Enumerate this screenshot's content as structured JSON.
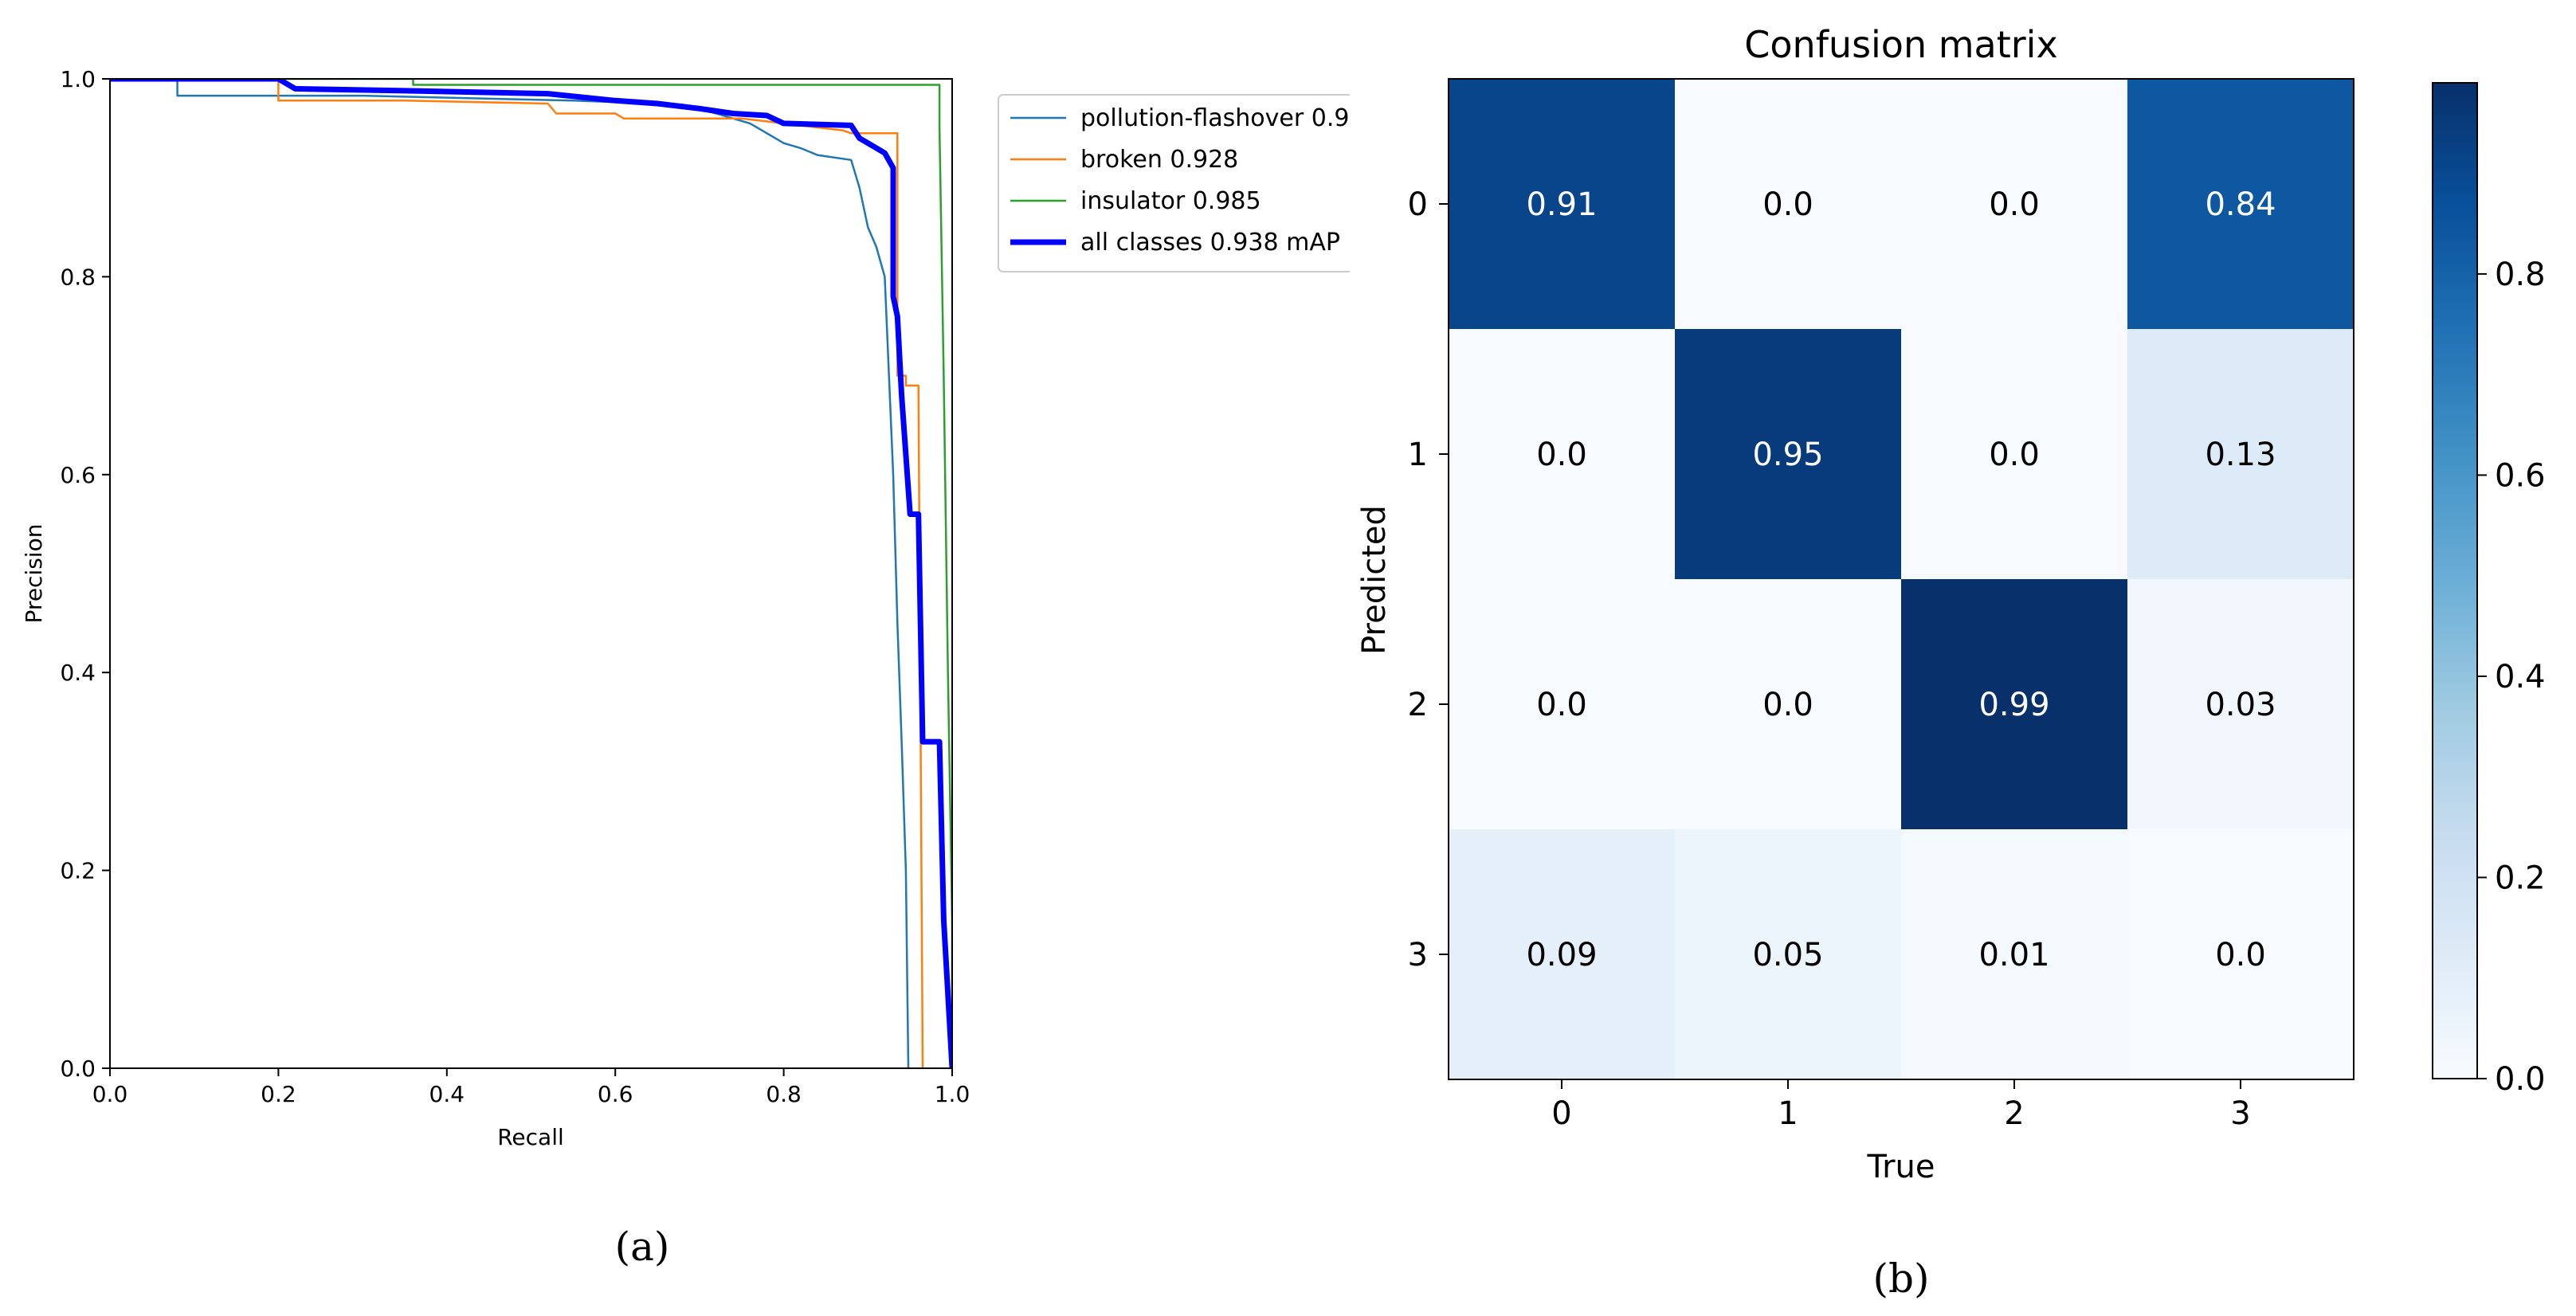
{
  "chart_data": [
    {
      "type": "line",
      "panel_label": "(a)",
      "xlabel": "Recall",
      "ylabel": "Precision",
      "xlim": [
        0.0,
        1.0
      ],
      "ylim": [
        0.0,
        1.0
      ],
      "xticks": [
        "0.0",
        "0.2",
        "0.4",
        "0.6",
        "0.8",
        "1.0"
      ],
      "yticks": [
        "0.0",
        "0.2",
        "0.4",
        "0.6",
        "0.8",
        "1.0"
      ],
      "grid": false,
      "legend_position": "outside-top-right",
      "series": [
        {
          "name": "pollution-flashover 0.9",
          "color": "#1f77b4",
          "width": "thin",
          "points": [
            [
              0,
              1
            ],
            [
              0.08,
              1
            ],
            [
              0.08,
              0.983
            ],
            [
              0.3,
              0.983
            ],
            [
              0.55,
              0.978
            ],
            [
              0.68,
              0.974
            ],
            [
              0.72,
              0.965
            ],
            [
              0.76,
              0.955
            ],
            [
              0.78,
              0.945
            ],
            [
              0.8,
              0.935
            ],
            [
              0.82,
              0.93
            ],
            [
              0.84,
              0.923
            ],
            [
              0.88,
              0.918
            ],
            [
              0.89,
              0.89
            ],
            [
              0.9,
              0.85
            ],
            [
              0.91,
              0.83
            ],
            [
              0.92,
              0.8
            ],
            [
              0.925,
              0.7
            ],
            [
              0.93,
              0.6
            ],
            [
              0.935,
              0.45
            ],
            [
              0.94,
              0.33
            ],
            [
              0.945,
              0.2
            ],
            [
              0.948,
              0.0
            ]
          ]
        },
        {
          "name": "broken 0.928",
          "color": "#ff7f0e",
          "width": "thin",
          "points": [
            [
              0,
              1
            ],
            [
              0.2,
              1
            ],
            [
              0.2,
              0.978
            ],
            [
              0.35,
              0.978
            ],
            [
              0.52,
              0.975
            ],
            [
              0.53,
              0.965
            ],
            [
              0.6,
              0.965
            ],
            [
              0.61,
              0.96
            ],
            [
              0.75,
              0.96
            ],
            [
              0.8,
              0.955
            ],
            [
              0.87,
              0.948
            ],
            [
              0.88,
              0.945
            ],
            [
              0.935,
              0.945
            ],
            [
              0.935,
              0.7
            ],
            [
              0.945,
              0.7
            ],
            [
              0.945,
              0.69
            ],
            [
              0.96,
              0.69
            ],
            [
              0.965,
              0.0
            ]
          ]
        },
        {
          "name": "insulator 0.985",
          "color": "#2ca02c",
          "width": "thin",
          "points": [
            [
              0,
              1
            ],
            [
              0.36,
              1
            ],
            [
              0.36,
              0.994
            ],
            [
              0.985,
              0.994
            ],
            [
              0.985,
              0.95
            ],
            [
              0.99,
              0.7
            ],
            [
              0.995,
              0.4
            ],
            [
              1.0,
              0.15
            ],
            [
              1.0,
              0.0
            ]
          ]
        },
        {
          "name": "all classes 0.938 mAP",
          "color": "#0000ff",
          "width": "thick",
          "points": [
            [
              0,
              1
            ],
            [
              0.2,
              1
            ],
            [
              0.22,
              0.99
            ],
            [
              0.35,
              0.988
            ],
            [
              0.52,
              0.985
            ],
            [
              0.6,
              0.978
            ],
            [
              0.65,
              0.975
            ],
            [
              0.7,
              0.97
            ],
            [
              0.74,
              0.965
            ],
            [
              0.78,
              0.963
            ],
            [
              0.8,
              0.955
            ],
            [
              0.88,
              0.953
            ],
            [
              0.89,
              0.94
            ],
            [
              0.91,
              0.93
            ],
            [
              0.92,
              0.925
            ],
            [
              0.93,
              0.91
            ],
            [
              0.93,
              0.78
            ],
            [
              0.935,
              0.76
            ],
            [
              0.94,
              0.68
            ],
            [
              0.945,
              0.62
            ],
            [
              0.95,
              0.56
            ],
            [
              0.96,
              0.56
            ],
            [
              0.965,
              0.33
            ],
            [
              0.985,
              0.33
            ],
            [
              0.99,
              0.15
            ],
            [
              1.0,
              0.0
            ]
          ]
        }
      ]
    },
    {
      "type": "heatmap",
      "panel_label": "(b)",
      "title": "Confusion matrix",
      "xlabel": "True",
      "ylabel": "Predicted",
      "row_labels": [
        "0",
        "1",
        "2",
        "3"
      ],
      "col_labels": [
        "0",
        "1",
        "2",
        "3"
      ],
      "values": [
        [
          0.91,
          0.0,
          0.0,
          0.84
        ],
        [
          0.0,
          0.95,
          0.0,
          0.13
        ],
        [
          0.0,
          0.0,
          0.99,
          0.03
        ],
        [
          0.09,
          0.05,
          0.01,
          0.0
        ]
      ],
      "cell_text": [
        [
          "0.91",
          "0.0",
          "0.0",
          "0.84"
        ],
        [
          "0.0",
          "0.95",
          "0.0",
          "0.13"
        ],
        [
          "0.0",
          "0.0",
          "0.99",
          "0.03"
        ],
        [
          "0.09",
          "0.05",
          "0.01",
          "0.0"
        ]
      ],
      "colormap": "Blues",
      "colorbar_range": [
        0.0,
        0.99
      ],
      "colorbar_ticks": [
        "0.0",
        "0.2",
        "0.4",
        "0.6",
        "0.8"
      ]
    }
  ]
}
